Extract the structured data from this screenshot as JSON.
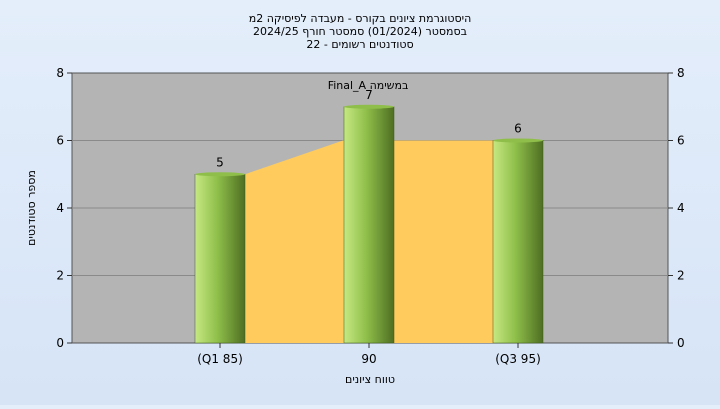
{
  "chart_data": {
    "type": "bar",
    "title_lines": [
      "היסטוגרמת ציונים בקורס - מעבדה לפיסיקה  2מ",
      "בסמסטר  (01/2024)  סמסטר חורף  2024/25",
      "סטודנטים רשומים - 22"
    ],
    "categories": [
      "(Q1 85)",
      "90",
      "(Q3 95)"
    ],
    "values": [
      5,
      7,
      6
    ],
    "data_labels": [
      "5",
      "7",
      "6"
    ],
    "annotation": "Final_A במשימה",
    "area_y": [
      5,
      6,
      6
    ],
    "xlabel": "טווח ציונים",
    "ylabel": "מספר סטודנטים",
    "ylim": [
      0,
      8
    ],
    "yticks": [
      0,
      2,
      4,
      6,
      8
    ],
    "grid": true,
    "colors": {
      "plot_background": "#b4b4b4",
      "area_fill": "#ffcb5c",
      "bar_light": "#c6e883",
      "bar_mid": "#8fbf4a",
      "bar_dark": "#4e6e22"
    }
  }
}
